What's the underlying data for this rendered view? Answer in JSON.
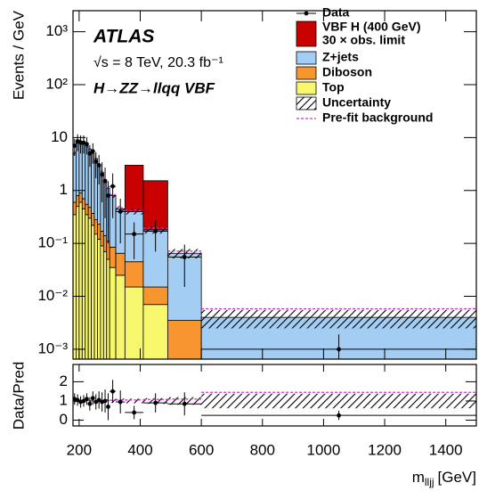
{
  "chart_data": {
    "type": "histogram",
    "annotations": {
      "experiment": "ATLAS",
      "energy": "√s = 8 TeV, 20.3 fb⁻¹",
      "process": "H→ZZ→llqq VBF"
    },
    "y_label": "Events / GeV",
    "x_label": "m",
    "x_label_sub": "lljj",
    "x_label_unit": "[GeV]",
    "bins": [
      180,
      190,
      200,
      210,
      220,
      230,
      240,
      250,
      260,
      270,
      280,
      290,
      300,
      320,
      350,
      410,
      490,
      600,
      1500
    ],
    "series": [
      {
        "name": "Top",
        "color": "#f7f76e",
        "values": [
          0.35,
          0.5,
          0.6,
          0.45,
          0.35,
          0.3,
          0.22,
          0.15,
          0.12,
          0.09,
          0.07,
          0.05,
          0.035,
          0.025,
          0.015,
          0.007,
          0,
          0
        ]
      },
      {
        "name": "Diboson",
        "color": "#f7962e",
        "values": [
          0.25,
          0.3,
          0.3,
          0.25,
          0.2,
          0.18,
          0.15,
          0.13,
          0.11,
          0.08,
          0.07,
          0.06,
          0.05,
          0.04,
          0.03,
          0.008,
          0.0035,
          0
        ]
      },
      {
        "name": "Z+jets",
        "color": "#a3cdf2",
        "values": [
          4.4,
          7.2,
          7.6,
          7.3,
          6.45,
          5.52,
          4.63,
          3.72,
          2.77,
          2.03,
          1.46,
          0.99,
          0.72,
          0.385,
          0.355,
          0.165,
          0.0615,
          0.004
        ]
      },
      {
        "name": "VBF H (400 GeV)",
        "color": "#c80000",
        "values": [
          0,
          0,
          0,
          0,
          0,
          0,
          0,
          0,
          0,
          0,
          0,
          0,
          0,
          0,
          2.6,
          1.35,
          0,
          0
        ]
      }
    ],
    "signal_note": "30 × obs. limit",
    "data": {
      "name": "Data",
      "x": [
        185,
        195,
        205,
        215,
        225,
        235,
        245,
        255,
        265,
        275,
        285,
        295,
        310,
        335,
        380,
        450,
        545,
        1050
      ],
      "values": [
        7,
        8.5,
        8,
        8,
        7.5,
        5,
        5.5,
        3.5,
        3,
        2,
        1.5,
        0.8,
        1.2,
        0.4,
        0.15,
        0.17,
        0.055,
        0.001
      ],
      "errors": [
        2.5,
        3,
        3,
        3,
        2.7,
        2.2,
        2.3,
        1.8,
        1.7,
        1.4,
        1.2,
        0.7,
        0.9,
        0.3,
        0.1,
        0.1,
        0.04,
        0.0009
      ],
      "ratio": [
        1.1,
        1.05,
        0.95,
        1.0,
        1.1,
        0.85,
        1.15,
        0.95,
        1.05,
        0.95,
        1.0,
        0.7,
        1.5,
        0.95,
        0.4,
        0.9,
        0.85,
        0.25
      ],
      "ratio_errors": [
        0.3,
        0.3,
        0.3,
        0.3,
        0.3,
        0.35,
        0.35,
        0.4,
        0.45,
        0.5,
        0.6,
        0.7,
        0.6,
        0.6,
        0.35,
        0.5,
        0.6,
        0.24
      ]
    },
    "uncertainty": {
      "name": "Uncertainty",
      "values": [
        0.08,
        0.08,
        0.08,
        0.08,
        0.08,
        0.08,
        0.08,
        0.08,
        0.08,
        0.08,
        0.08,
        0.08,
        0.1,
        0.12,
        0.12,
        0.15,
        0.2,
        0.38
      ]
    },
    "prefit": {
      "name": "Pre-fit background",
      "color": "#cc33cc",
      "values": [
        1.02,
        1.02,
        1.02,
        1.02,
        1.02,
        1.02,
        1.02,
        1.02,
        1.02,
        1.02,
        1.02,
        1.02,
        1.04,
        1.05,
        1.05,
        1.08,
        1.1,
        1.45
      ]
    },
    "log_y": true,
    "xlim": [
      180,
      1500
    ],
    "xticks": [
      200,
      400,
      600,
      800,
      1000,
      1200,
      1400
    ],
    "ylim": [
      0.00065,
      2500
    ],
    "yticks": [
      {
        "value": 0.001,
        "label": "10⁻³"
      },
      {
        "value": 0.01,
        "label": "10⁻²"
      },
      {
        "value": 0.1,
        "label": "10⁻¹"
      },
      1,
      10,
      {
        "value": 100,
        "label": "10²"
      },
      {
        "value": 1000,
        "label": "10³"
      }
    ],
    "ratio_panel": {
      "y_label": "Data/Pred",
      "ylim": [
        -0.3,
        2.9
      ],
      "yticks": [
        0,
        1,
        2
      ]
    }
  }
}
